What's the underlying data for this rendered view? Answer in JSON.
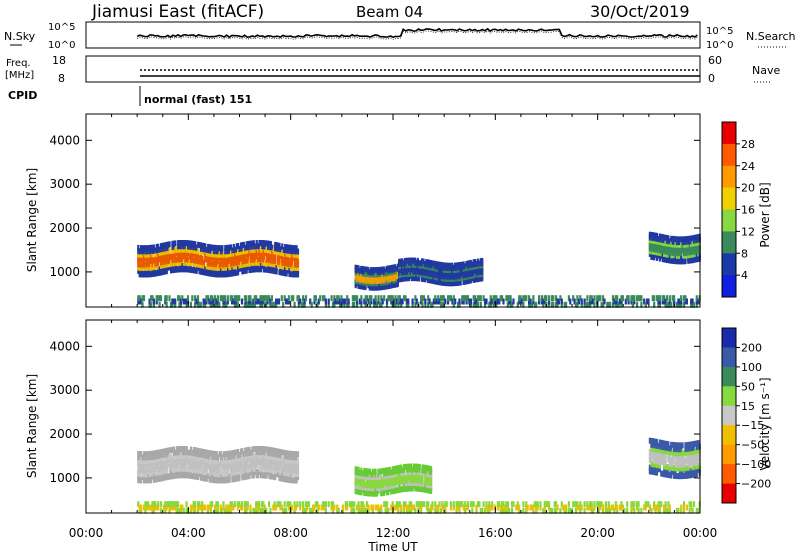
{
  "header": {
    "station": "Jiamusi East (fitACF)",
    "beam": "Beam 04",
    "date": "30/Oct/2019"
  },
  "nsky_panel": {
    "label": "N.Sky",
    "left_ticks": [
      "10^5",
      "10^0"
    ],
    "right_ticks": [
      "10^5",
      "10^0"
    ],
    "right_label": "N.Search"
  },
  "freq_panel": {
    "label_line1": "Freq.",
    "label_line2": "[MHz]",
    "left_ticks": [
      "18",
      "8"
    ],
    "right_ticks": [
      "60",
      "0"
    ],
    "right_label": "Nave"
  },
  "cpid_panel": {
    "label": "CPID",
    "mode_text": "normal (fast) 151"
  },
  "chart_data": [
    {
      "type": "heatmap",
      "panel": "power",
      "ylabel": "Slant Range [km]",
      "y_ticks": [
        "4000",
        "3000",
        "2000",
        "1000"
      ],
      "ylim": [
        200,
        4600
      ],
      "colorbar": {
        "label": "Power [dB]",
        "ticks": [
          "28",
          "24",
          "20",
          "16",
          "12",
          "8",
          "4"
        ],
        "colors": [
          "#e80000",
          "#ff5a00",
          "#ff9a00",
          "#f0d000",
          "#88d840",
          "#3a8a5a",
          "#1a3aa8",
          "#1020e0"
        ]
      },
      "regions": [
        {
          "t0": 2.0,
          "t1": 8.3,
          "r0": 1000,
          "r1": 1600,
          "core": "#e85a00",
          "edge": "#2038a0",
          "mid": "#f0c000"
        },
        {
          "t0": 10.5,
          "t1": 12.2,
          "r0": 700,
          "r1": 1100,
          "core": "#f0a000",
          "edge": "#2038a0",
          "mid": "#3a8a5a"
        },
        {
          "t0": 12.2,
          "t1": 15.5,
          "r0": 800,
          "r1": 1200,
          "core": "#2038a0",
          "edge": "#2038a0",
          "mid": "#3a8a5a"
        },
        {
          "t0": 22.0,
          "t1": 24.0,
          "r0": 1300,
          "r1": 1800,
          "core": "#3a8a5a",
          "edge": "#2038a0",
          "mid": "#88d840"
        },
        {
          "t0": 2.0,
          "t1": 24.0,
          "r0": 250,
          "r1": 400,
          "core": "#2038a0",
          "edge": "#3a8a5a",
          "mid": "#88d840"
        }
      ]
    },
    {
      "type": "heatmap",
      "panel": "velocity",
      "ylabel": "Slant Range [km]",
      "xlabel": "Time UT",
      "x_ticks": [
        "00:00",
        "04:00",
        "08:00",
        "12:00",
        "16:00",
        "20:00",
        "00:00"
      ],
      "y_ticks": [
        "4000",
        "3000",
        "2000",
        "1000"
      ],
      "ylim": [
        200,
        4600
      ],
      "colorbar": {
        "label": "Velocity [m s⁻¹]",
        "ticks": [
          "200",
          "100",
          "50",
          "15",
          "−15",
          "−50",
          "−100",
          "−200"
        ],
        "colors": [
          "#1a2aa8",
          "#3a5aa8",
          "#3a8a5a",
          "#88d840",
          "#c8c8c8",
          "#f0c000",
          "#ff9a00",
          "#ff5a00",
          "#e80000"
        ]
      },
      "regions": [
        {
          "t0": 2.0,
          "t1": 8.3,
          "r0": 1000,
          "r1": 1600,
          "core": "#c0c0c0",
          "edge": "#a8a8a8",
          "mid": "#c8c8c8"
        },
        {
          "t0": 10.5,
          "t1": 13.5,
          "r0": 700,
          "r1": 1200,
          "core": "#88d840",
          "edge": "#66cc33",
          "mid": "#c0c0c0"
        },
        {
          "t0": 22.0,
          "t1": 24.0,
          "r0": 1100,
          "r1": 1800,
          "core": "#c0c0c0",
          "edge": "#3a5aa8",
          "mid": "#88d840"
        },
        {
          "t0": 2.0,
          "t1": 24.0,
          "r0": 250,
          "r1": 400,
          "core": "#f0c000",
          "edge": "#88d840",
          "mid": "#c0c0c0"
        }
      ]
    }
  ]
}
